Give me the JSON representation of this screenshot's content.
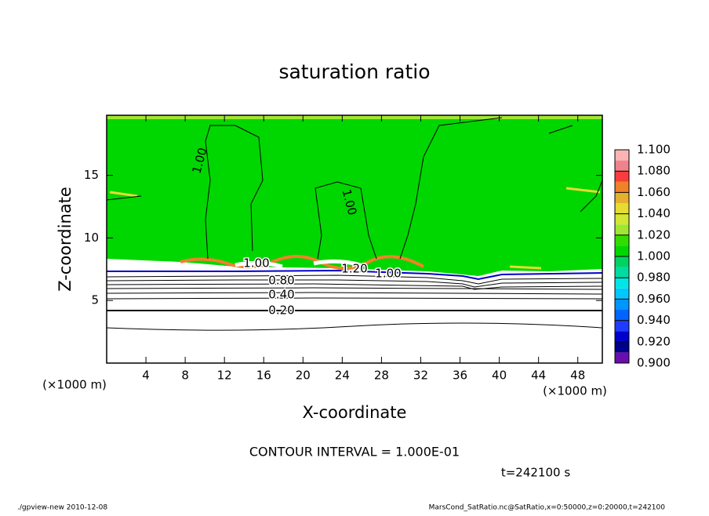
{
  "chart_data": {
    "type": "contour",
    "title": "saturation ratio",
    "x_label": "X-coordinate",
    "y_label": "Z-coordinate",
    "x_unit": "(×1000 m)",
    "x_unit_right": "(×1000 m)",
    "xlim": [
      0,
      50.5
    ],
    "ylim": [
      0,
      19.8
    ],
    "xticks": [
      4,
      8,
      12,
      16,
      20,
      24,
      28,
      32,
      36,
      40,
      44,
      48
    ],
    "yticks": [
      5,
      10,
      15
    ],
    "contour_labels": [
      "1.00",
      "1.00",
      "1.00",
      "1.20",
      "1.00",
      "0.80",
      "0.40",
      "0.20"
    ],
    "colorbar": {
      "lim": [
        0.9,
        1.1
      ],
      "step": 0.01,
      "colors": [
        "#6a0dad",
        "#00008b",
        "#0000cd",
        "#1e3cff",
        "#0064ff",
        "#0096ff",
        "#00c8ff",
        "#00e6e6",
        "#00dca0",
        "#00d264",
        "#00d700",
        "#32dc00",
        "#a0e632",
        "#d2e632",
        "#e6dc32",
        "#e6af2d",
        "#f08228",
        "#fa3c3c",
        "#f0828c",
        "#fab4b4"
      ],
      "ticks": [
        {
          "value": 0.9,
          "label": "0.900"
        },
        {
          "value": 0.92,
          "label": "0.920"
        },
        {
          "value": 0.94,
          "label": "0.940"
        },
        {
          "value": 0.96,
          "label": "0.960"
        },
        {
          "value": 0.98,
          "label": "0.980"
        },
        {
          "value": 1.0,
          "label": "1.000"
        },
        {
          "value": 1.02,
          "label": "1.020"
        },
        {
          "value": 1.04,
          "label": "1.040"
        },
        {
          "value": 1.06,
          "label": "1.060"
        },
        {
          "value": 1.08,
          "label": "1.080"
        },
        {
          "value": 1.1,
          "label": "1.100"
        }
      ]
    },
    "contour_interval": "CONTOUR INTERVAL = 1.000E-01",
    "time_label": "t=242100 s",
    "footer_left": "./gpview-new   2010-12-08",
    "footer_right": "MarsCond_SatRatio.nc@SatRatio,x=0:50000,z=0:20000,t=242100"
  }
}
